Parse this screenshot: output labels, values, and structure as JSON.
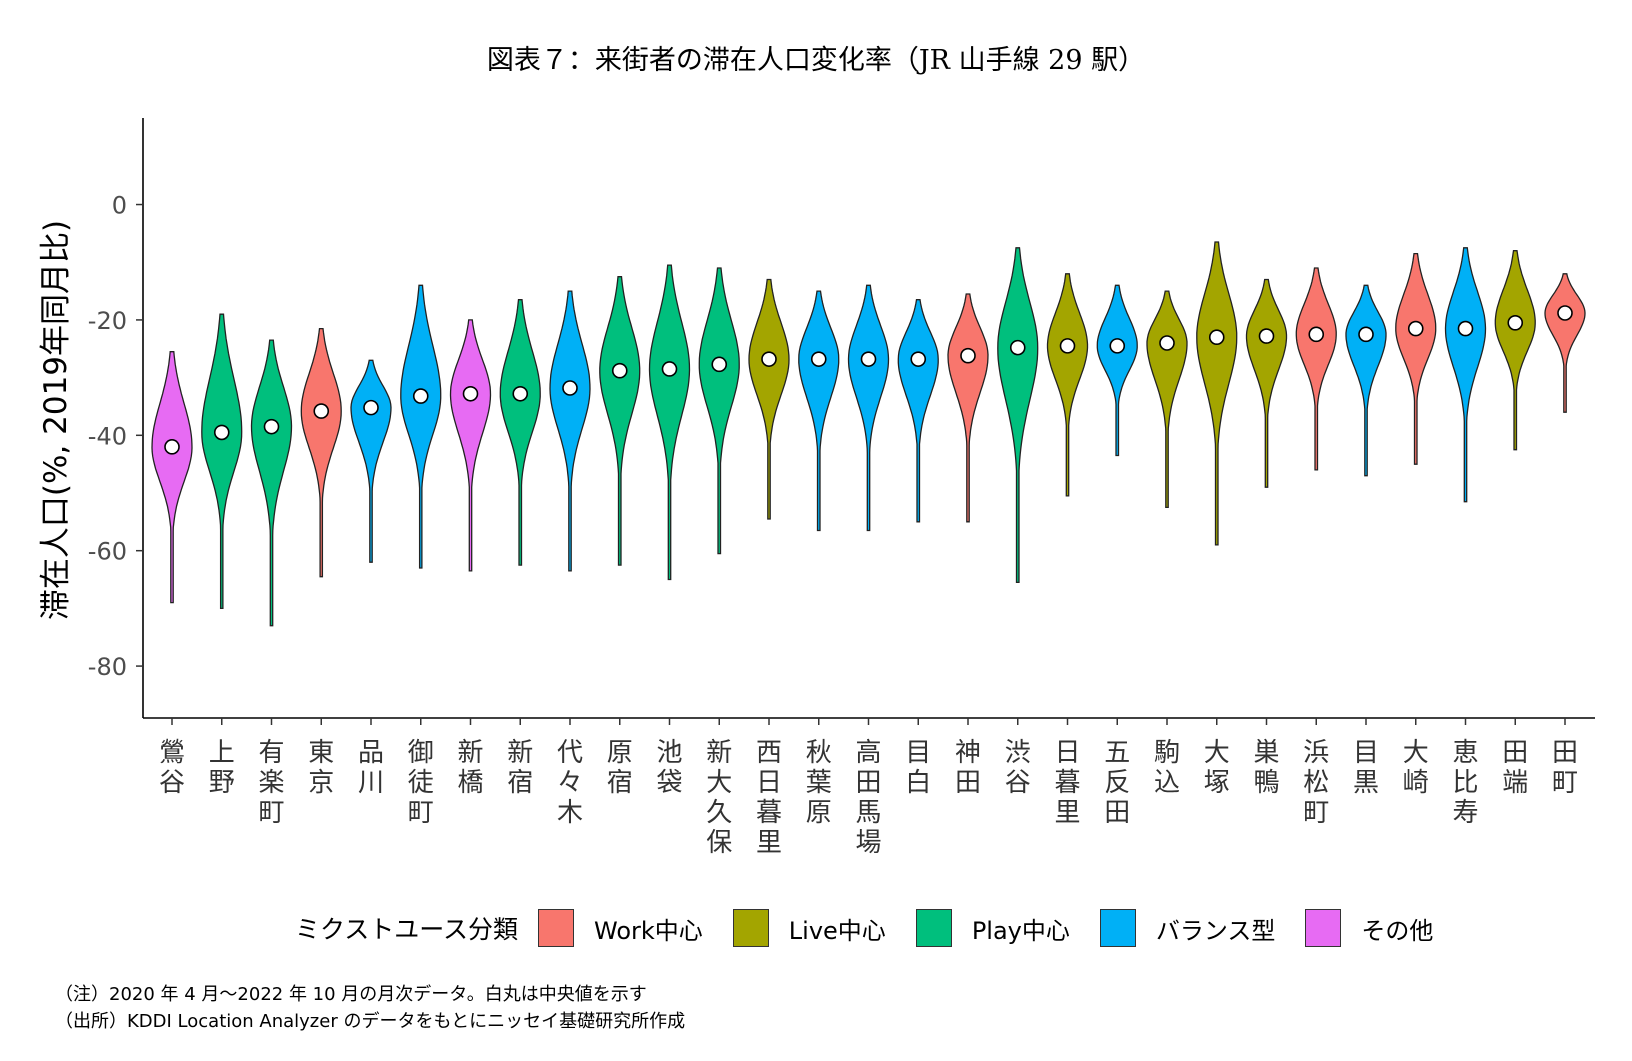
{
  "title": "図表７：来街者の滞在人口変化率（JR 山手線 29 駅）",
  "chart_data": {
    "type": "violin",
    "ylabel": "滞在人口(%, 2019年同月比)",
    "ylim": [
      -89,
      15
    ],
    "yticks": [
      0,
      -20,
      -40,
      -60,
      -80
    ],
    "categories": [
      "鶯谷",
      "上野",
      "有楽町",
      "東京",
      "品川",
      "御徒町",
      "新橋",
      "新宿",
      "代々木",
      "原宿",
      "池袋",
      "新大久保",
      "西日暮里",
      "秋葉原",
      "高田馬場",
      "目白",
      "神田",
      "渋谷",
      "日暮里",
      "五反田",
      "駒込",
      "大塚",
      "巣鴨",
      "浜松町",
      "目黒",
      "大崎",
      "恵比寿",
      "田端",
      "田町"
    ],
    "groups": [
      "その他",
      "Play中心",
      "Play中心",
      "Work中心",
      "バランス型",
      "バランス型",
      "その他",
      "Play中心",
      "バランス型",
      "Play中心",
      "Play中心",
      "Play中心",
      "Live中心",
      "バランス型",
      "バランス型",
      "バランス型",
      "Work中心",
      "Play中心",
      "Live中心",
      "バランス型",
      "Live中心",
      "Live中心",
      "Live中心",
      "Work中心",
      "バランス型",
      "Work中心",
      "バランス型",
      "Live中心",
      "Work中心"
    ],
    "medians": [
      -42.0,
      -39.5,
      -38.5,
      -35.8,
      -35.2,
      -33.2,
      -32.8,
      -32.8,
      -31.8,
      -28.8,
      -28.5,
      -27.7,
      -26.8,
      -26.8,
      -26.8,
      -26.8,
      -26.2,
      -24.8,
      -24.5,
      -24.5,
      -24.0,
      -23.0,
      -22.8,
      -22.5,
      -22.5,
      -21.5,
      -21.5,
      -20.5,
      -18.8
    ],
    "max": [
      -25.5,
      -19,
      -23.5,
      -21.5,
      -27,
      -14,
      -20,
      -16.5,
      -15,
      -12.5,
      -10.5,
      -11,
      -13,
      -15,
      -14,
      -16.5,
      -15.5,
      -7.5,
      -12,
      -14,
      -15,
      -6.5,
      -13,
      -11,
      -14,
      -8.5,
      -7.5,
      -8,
      -12
    ],
    "min": [
      -69,
      -70,
      -73,
      -64.5,
      -62,
      -63,
      -63.5,
      -62.5,
      -63.5,
      -62.5,
      -65,
      -60.5,
      -54.5,
      -56.5,
      -56.5,
      -55,
      -55,
      -65.5,
      -50.5,
      -43.5,
      -52.5,
      -59,
      -49,
      -46,
      -47,
      -45,
      -51.5,
      -42.5,
      -36
    ],
    "legend_title": "ミクストユース分類",
    "legend": [
      {
        "label": "Work中心",
        "color": "#F8766D"
      },
      {
        "label": "Live中心",
        "color": "#A3A500"
      },
      {
        "label": "Play中心",
        "color": "#00BF7D"
      },
      {
        "label": "バランス型",
        "color": "#00B0F6"
      },
      {
        "label": "その他",
        "color": "#E76BF3"
      }
    ]
  },
  "notes": {
    "note1": "（注）2020 年 4 月～2022 年 10 月の月次データ。白丸は中央値を示す",
    "note2": "（出所）KDDI Location Analyzer のデータをもとにニッセイ基礎研究所作成"
  }
}
